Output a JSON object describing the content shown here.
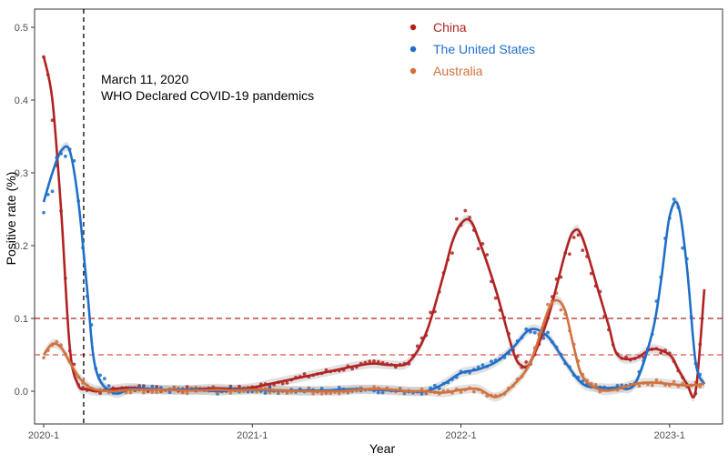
{
  "chart_data": {
    "type": "line",
    "xlabel": "Year",
    "ylabel": "Positive rate (%)",
    "x_ticks": [
      {
        "label": "2020-1",
        "month": 0
      },
      {
        "label": "2021-1",
        "month": 12
      },
      {
        "label": "2022-1",
        "month": 24
      },
      {
        "label": "2023-1",
        "month": 36
      }
    ],
    "xlim": [
      0,
      38
    ],
    "ylim": [
      -0.045,
      0.525
    ],
    "y_ticks": [
      0.0,
      0.1,
      0.2,
      0.3,
      0.4,
      0.5
    ],
    "y_tick_labels": [
      "0.0",
      "0.1",
      "0.2",
      "0.3",
      "0.4",
      "0.5"
    ],
    "reference_lines": [
      {
        "orientation": "horizontal",
        "value": 0.1,
        "color": "#B22222",
        "style": "dashed"
      },
      {
        "orientation": "horizontal",
        "value": 0.05,
        "color": "#D9534F",
        "style": "dashed"
      },
      {
        "orientation": "vertical",
        "value": 2.3,
        "color": "#000000",
        "style": "dashed"
      }
    ],
    "annotation": {
      "line1": "March 11, 2020",
      "line2": "WHO Declared COVID-19 pandemics"
    },
    "series": [
      {
        "name": "China",
        "color": "#B22222",
        "x": [
          0,
          0.5,
          1,
          1.5,
          2,
          2.5,
          3,
          4,
          5,
          6,
          7,
          8,
          9,
          10,
          11,
          12,
          13,
          14,
          15,
          16,
          17,
          18,
          19,
          20,
          21,
          22,
          23,
          23.5,
          24,
          24.5,
          25,
          26,
          27,
          27.5,
          28,
          29,
          30,
          30.5,
          31,
          32,
          32.5,
          33,
          34,
          35,
          36,
          36.5,
          37,
          37.5,
          38
        ],
        "values": [
          0.46,
          0.4,
          0.25,
          0.06,
          0.008,
          0.003,
          0.0,
          0.003,
          0.005,
          0.003,
          0.002,
          0.002,
          0.003,
          0.004,
          0.003,
          0.005,
          0.01,
          0.015,
          0.02,
          0.025,
          0.03,
          0.035,
          0.038,
          0.036,
          0.04,
          0.08,
          0.16,
          0.205,
          0.23,
          0.235,
          0.21,
          0.14,
          0.055,
          0.035,
          0.04,
          0.1,
          0.19,
          0.22,
          0.21,
          0.13,
          0.09,
          0.05,
          0.045,
          0.058,
          0.05,
          0.03,
          0.01,
          0.0,
          0.14
        ]
      },
      {
        "name": "The United States",
        "color": "#1F6FC9",
        "x": [
          0,
          0.5,
          1,
          1.5,
          2,
          2.5,
          3,
          4,
          5,
          6,
          7,
          8,
          9,
          10,
          11,
          12,
          13,
          14,
          15,
          16,
          17,
          18,
          19,
          20,
          21,
          22,
          23,
          24,
          25,
          26,
          27,
          28,
          29,
          30,
          31,
          32,
          33,
          34,
          35,
          35.5,
          36,
          36.5,
          37,
          37.5,
          38
        ],
        "values": [
          0.26,
          0.3,
          0.33,
          0.33,
          0.26,
          0.14,
          0.03,
          -0.002,
          0.003,
          0.003,
          0.002,
          0.002,
          0.002,
          0.0,
          0.002,
          0.002,
          0.001,
          0.001,
          0.001,
          0.001,
          0.002,
          0.003,
          0.002,
          0.001,
          0.0,
          0.0,
          0.01,
          0.025,
          0.03,
          0.04,
          0.06,
          0.085,
          0.075,
          0.04,
          0.01,
          0.005,
          0.005,
          0.01,
          0.08,
          0.15,
          0.24,
          0.255,
          0.17,
          0.04,
          0.01
        ]
      },
      {
        "name": "Australia",
        "color": "#D2713C",
        "x": [
          0,
          0.5,
          1,
          1.5,
          2,
          2.5,
          3,
          4,
          5,
          6,
          7,
          8,
          9,
          10,
          11,
          12,
          13,
          14,
          15,
          16,
          17,
          18,
          19,
          20,
          21,
          22,
          23,
          24,
          25,
          26,
          27,
          28,
          29,
          29.5,
          30,
          30.5,
          31,
          32,
          33,
          34,
          35,
          36,
          37,
          38
        ],
        "values": [
          0.05,
          0.065,
          0.06,
          0.04,
          0.02,
          0.008,
          0.002,
          0.0,
          0.002,
          0.002,
          0.002,
          0.001,
          0.001,
          0.002,
          0.001,
          0.002,
          0.002,
          0.001,
          0.0,
          0.0,
          0.0,
          0.002,
          0.003,
          0.002,
          0.0,
          0.0,
          -0.002,
          0.002,
          0.003,
          -0.008,
          0.008,
          0.04,
          0.11,
          0.125,
          0.11,
          0.06,
          0.02,
          0.002,
          0.003,
          0.01,
          0.012,
          0.01,
          0.008,
          0.01
        ]
      }
    ],
    "legend": {
      "position": "top-right",
      "entries": [
        {
          "label": "China",
          "color": "#B22222"
        },
        {
          "label": "The United States",
          "color": "#1F6FC9"
        },
        {
          "label": "Australia",
          "color": "#D2713C"
        }
      ]
    }
  }
}
